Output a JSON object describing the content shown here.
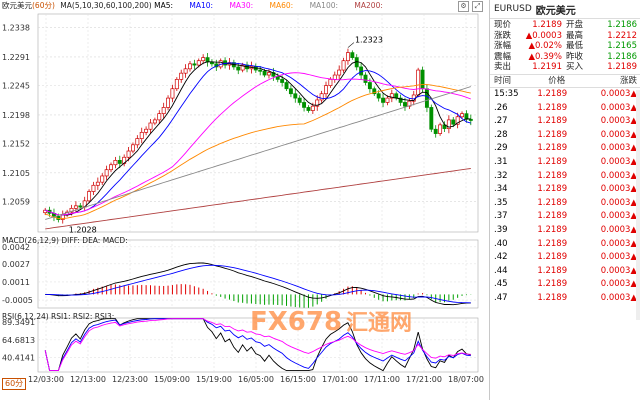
{
  "header": {
    "symbol_name": "欧元美元",
    "timeframe": "(60分)",
    "ma_title": "MA(5,10,30,60,100,200)",
    "ma_labels": [
      "MA5:",
      "MA10:",
      "MA30:",
      "MA60:",
      "MA100:",
      "MA200:"
    ],
    "ma_colors": [
      "#000000",
      "#0000ff",
      "#ff00ff",
      "#ff8800",
      "#888888",
      "#b04040"
    ]
  },
  "price_axis": {
    "ticks": [
      "1.2338",
      "1.2291",
      "1.2245",
      "1.2198",
      "1.2152",
      "1.2105",
      "1.2059"
    ]
  },
  "annotations": {
    "high": "1.2323",
    "low": "1.2028"
  },
  "macd": {
    "title": "MACD(26,12,9) DIFF: DEA: MACD:",
    "ticks": [
      "0.0042",
      "0.0027",
      "0.0011",
      "-0.0005"
    ]
  },
  "rsi": {
    "title": "RSI(6,12,24) RSI1: RSI2: RSI3:",
    "ticks": [
      "89.3491",
      "64.6813",
      "40.4141"
    ]
  },
  "time_axis": [
    "12/03:00",
    "12/13:00",
    "12/23:00",
    "15/09:00",
    "15/19:00",
    "16/05:00",
    "16/15:00",
    "17/01:00",
    "17/11:00",
    "17/21:00",
    "18/07:00"
  ],
  "timeframe_badge": "60分",
  "watermark": {
    "brand": "FX678",
    "cn": "汇通网"
  },
  "chart_data": {
    "type": "candlestick",
    "series_close": [
      1.2045,
      1.204,
      1.2035,
      1.203,
      1.2038,
      1.2042,
      1.2048,
      1.2052,
      1.205,
      1.206,
      1.2075,
      1.2085,
      1.209,
      1.21,
      1.211,
      1.2118,
      1.2125,
      1.212,
      1.213,
      1.214,
      1.215,
      1.216,
      1.217,
      1.2175,
      1.2185,
      1.219,
      1.22,
      1.221,
      1.2225,
      1.224,
      1.2255,
      1.2265,
      1.2272,
      1.228,
      1.2278,
      1.2285,
      1.229,
      1.2283,
      1.228,
      1.2275,
      1.2285,
      1.2278,
      1.2282,
      1.2275,
      1.227,
      1.2278,
      1.2272,
      1.2276,
      1.227,
      1.2268,
      1.2262,
      1.2266,
      1.226,
      1.2255,
      1.225,
      1.224,
      1.2232,
      1.2225,
      1.2218,
      1.221,
      1.2205,
      1.2212,
      1.2222,
      1.2232,
      1.2245,
      1.2255,
      1.2262,
      1.227,
      1.2285,
      1.2298,
      1.229,
      1.2275,
      1.2262,
      1.225,
      1.224,
      1.2232,
      1.2225,
      1.2218,
      1.2225,
      1.2232,
      1.2225,
      1.2218,
      1.2212,
      1.222,
      1.223,
      1.227,
      1.224,
      1.221,
      1.2175,
      1.2168,
      1.2182,
      1.2176,
      1.219,
      1.2183,
      1.2195,
      1.22,
      1.2191,
      1.2189
    ]
  },
  "quote": {
    "symbol": "EURUSD",
    "name": "欧元美元",
    "rows": [
      {
        "l1": "现价",
        "v1": "1.2189",
        "l2": "开盘",
        "v2": "1.2186",
        "c1": "red",
        "c2": "green"
      },
      {
        "l1": "涨跌",
        "v1": "▲0.0003",
        "l2": "最高",
        "v2": "1.2212",
        "c1": "red",
        "c2": "red"
      },
      {
        "l1": "涨幅",
        "v1": "▲0.02%",
        "l2": "最低",
        "v2": "1.2165",
        "c1": "red",
        "c2": "green"
      },
      {
        "l1": "震幅",
        "v1": "▲0.39%",
        "l2": "昨收",
        "v2": "1.2186",
        "c1": "red",
        "c2": "green"
      },
      {
        "l1": "卖出",
        "v1": "1.2191",
        "l2": "买入",
        "v2": "1.2189",
        "c1": "red",
        "c2": "red"
      }
    ]
  },
  "ticks_table": {
    "headers": [
      "时间",
      "价格",
      "涨跌"
    ],
    "rows": [
      {
        "t": "15:35",
        "p": "1.2189",
        "c": "0.0003▲"
      },
      {
        "t": ".26",
        "p": "1.2189",
        "c": "0.0003▲"
      },
      {
        "t": ".27",
        "p": "1.2189",
        "c": "0.0003▲"
      },
      {
        "t": ".28",
        "p": "1.2189",
        "c": "0.0003▲"
      },
      {
        "t": ".29",
        "p": "1.2189",
        "c": "0.0003▲"
      },
      {
        "t": ".31",
        "p": "1.2189",
        "c": "0.0003▲"
      },
      {
        "t": ".32",
        "p": "1.2189",
        "c": "0.0003▲"
      },
      {
        "t": ".34",
        "p": "1.2189",
        "c": "0.0003▲"
      },
      {
        "t": ".35",
        "p": "1.2189",
        "c": "0.0003▲"
      },
      {
        "t": ".37",
        "p": "1.2189",
        "c": "0.0003▲"
      },
      {
        "t": ".39",
        "p": "1.2189",
        "c": "0.0003▲"
      },
      {
        "t": ".40",
        "p": "1.2189",
        "c": "0.0003▲"
      },
      {
        "t": ".42",
        "p": "1.2189",
        "c": "0.0003▲"
      },
      {
        "t": ".44",
        "p": "1.2189",
        "c": "0.0003▲"
      },
      {
        "t": ".45",
        "p": "1.2189",
        "c": "0.0003▲"
      },
      {
        "t": ".47",
        "p": "1.2189",
        "c": "0.0003▲"
      }
    ]
  }
}
